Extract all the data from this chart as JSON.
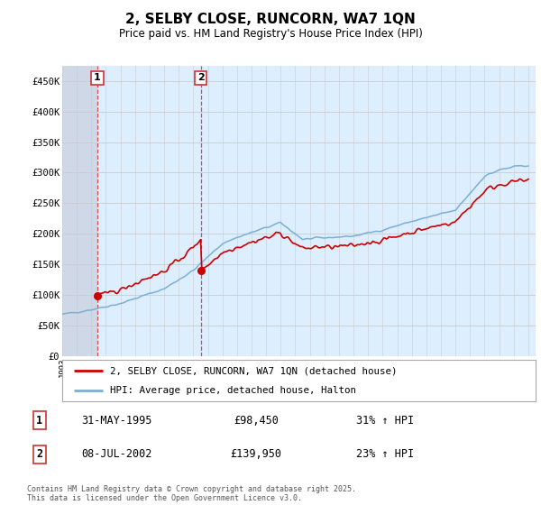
{
  "title": "2, SELBY CLOSE, RUNCORN, WA7 1QN",
  "subtitle": "Price paid vs. HM Land Registry's House Price Index (HPI)",
  "ylim": [
    0,
    475000
  ],
  "yticks": [
    0,
    50000,
    100000,
    150000,
    200000,
    250000,
    300000,
    350000,
    400000,
    450000
  ],
  "ytick_labels": [
    "£0",
    "£50K",
    "£100K",
    "£150K",
    "£200K",
    "£250K",
    "£300K",
    "£350K",
    "£400K",
    "£450K"
  ],
  "sale1_year": 1995,
  "sale1_month": 5,
  "sale1_day": 31,
  "sale1_price": 98450,
  "sale2_year": 2002,
  "sale2_month": 7,
  "sale2_day": 8,
  "sale2_price": 139950,
  "hpi_color": "#7bafd4",
  "price_color": "#cc0000",
  "marker_color": "#cc0000",
  "vline_color": "#cc3333",
  "legend_line1": "2, SELBY CLOSE, RUNCORN, WA7 1QN (detached house)",
  "legend_line2": "HPI: Average price, detached house, Halton",
  "table_row1": [
    "1",
    "31-MAY-1995",
    "£98,450",
    "31% ↑ HPI"
  ],
  "table_row2": [
    "2",
    "08-JUL-2002",
    "£139,950",
    "23% ↑ HPI"
  ],
  "footnote": "Contains HM Land Registry data © Crown copyright and database right 2025.\nThis data is licensed under the Open Government Licence v3.0.",
  "background_color": "#ffffff",
  "grid_color": "#cccccc",
  "chart_bg": "#ddeeff",
  "hatch_color": "#c8c8d8",
  "xlim_start": 1993,
  "xlim_end": 2025.5
}
